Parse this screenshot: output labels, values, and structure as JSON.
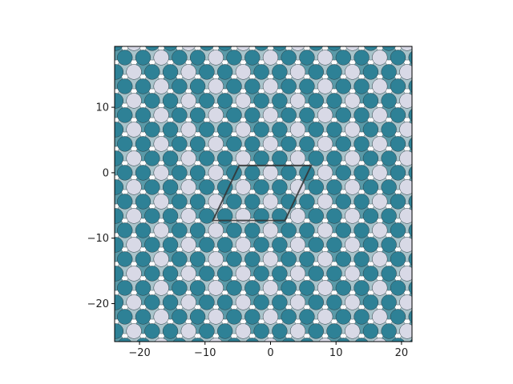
{
  "chart_data": {
    "type": "scatter",
    "title": "",
    "xlabel": "",
    "ylabel": "",
    "xlim": [
      -23.8,
      21.6
    ],
    "ylim": [
      -25.8,
      19.3
    ],
    "x_ticks": [
      -20,
      -10,
      0,
      10,
      20
    ],
    "y_ticks": [
      -20,
      -10,
      0,
      10
    ],
    "x_tick_labels": [
      "−20",
      "−10",
      "0",
      "10",
      "20"
    ],
    "y_tick_labels": [
      "−20",
      "−10",
      "0",
      "10"
    ],
    "grid": false,
    "legend": "none",
    "lattice": {
      "description": "triangular close-packed lattice of atoms, two layers",
      "a1": [
        2.78,
        0
      ],
      "a2": [
        1.39,
        2.2
      ],
      "atom_radius": 1.15,
      "pattern": "every third atom light on upper layer",
      "colors": {
        "dark": "#2e8196",
        "light": "#d8d9e6",
        "mid": "#5a9aa8",
        "back": "#a9c4cb",
        "edge": "#2b3a40"
      }
    },
    "unit_cell": {
      "corners": [
        [
          -8.8,
          -7.3
        ],
        [
          2.2,
          -7.3
        ],
        [
          6.2,
          1.1
        ],
        [
          -4.8,
          1.1
        ]
      ],
      "color": "#333333"
    }
  }
}
